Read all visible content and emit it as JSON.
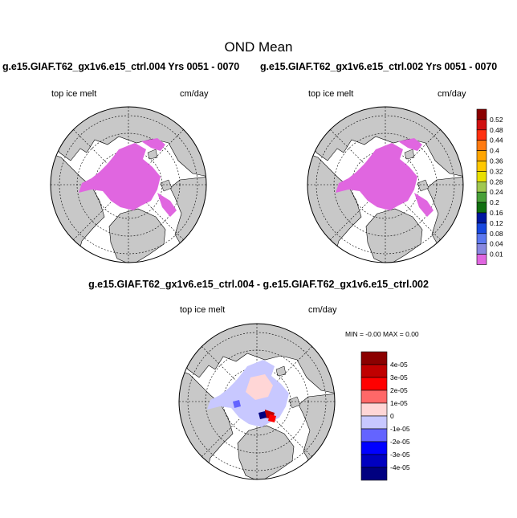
{
  "figure": {
    "title": "OND Mean",
    "left_run_title": "g.e15.GIAF.T62_gx1v6.e15_ctrl.004  Yrs 0051 - 0070",
    "right_run_title": "g.e15.GIAF.T62_gx1v6.e15_ctrl.002  Yrs 0051 - 0070",
    "diff_title": "g.e15.GIAF.T62_gx1v6.e15_ctrl.004 - g.e15.GIAF.T62_gx1v6.e15_ctrl.002"
  },
  "chart_data": [
    {
      "type": "heatmap",
      "projection": "north polar stereographic",
      "run": "g.e15.GIAF.T62_gx1v6.e15_ctrl.004",
      "years": "Yrs 0051 - 0070",
      "variable_label": "top ice melt",
      "units": "cm/day",
      "description_values": "top ice melt in lowest bin (0.01) over Arctic sea ice",
      "land_color": "#c8c8c8",
      "ocean_color": "#ffffff",
      "field_color": "#e066e0"
    },
    {
      "type": "heatmap",
      "projection": "north polar stereographic",
      "run": "g.e15.GIAF.T62_gx1v6.e15_ctrl.002",
      "years": "Yrs 0051 - 0070",
      "variable_label": "top ice melt",
      "units": "cm/day",
      "land_color": "#c8c8c8",
      "ocean_color": "#ffffff",
      "field_color": "#e066e0"
    },
    {
      "type": "heatmap",
      "projection": "north polar stereographic",
      "run": "g.e15.GIAF.T62_gx1v6.e15_ctrl.004 - g.e15.GIAF.T62_gx1v6.e15_ctrl.002",
      "variable_label": "top ice melt",
      "units": "cm/day",
      "min_max_text": "MIN =  -0.00 MAX =   0.00",
      "land_color": "#c8c8c8",
      "ocean_color": "#ffffff"
    }
  ],
  "colorbars": {
    "top": {
      "labels": [
        "0.52",
        "0.48",
        "0.44",
        "0.4",
        "0.36",
        "0.32",
        "0.28",
        "0.24",
        "0.2",
        "0.16",
        "0.12",
        "0.08",
        "0.04",
        "0.01"
      ],
      "colors": [
        "#8b0000",
        "#d01010",
        "#ff3010",
        "#ff7a10",
        "#ffa500",
        "#ffc800",
        "#e8e000",
        "#a0c850",
        "#48a038",
        "#107010",
        "#0018a0",
        "#1848e0",
        "#5c78f0",
        "#8888e0",
        "#e066e0"
      ]
    },
    "diff": {
      "labels": [
        "4e-05",
        "3e-05",
        "2e-05",
        "1e-05",
        "0",
        "-1e-05",
        "-2e-05",
        "-3e-05",
        "-4e-05"
      ],
      "colors": [
        "#8b0000",
        "#c00000",
        "#ff0000",
        "#ff6868",
        "#ffd6d6",
        "#c8c8ff",
        "#6464ff",
        "#0000ff",
        "#0000c0",
        "#000080"
      ]
    }
  }
}
